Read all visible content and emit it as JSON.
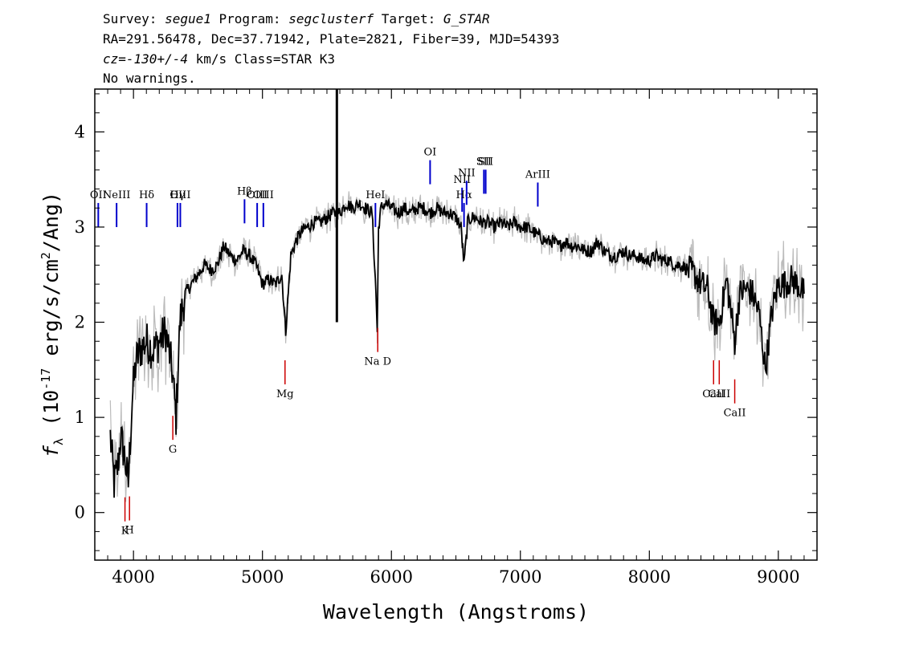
{
  "header": {
    "line1": {
      "survey_label": "Survey: ",
      "survey": "segue1",
      "program_label": " Program: ",
      "program": "segclusterf",
      "target_label": " Target: ",
      "target": "G_STAR"
    },
    "line2": "RA=291.56478, Dec=37.71942, Plate=2821, Fiber=39, MJD=54393",
    "line3": {
      "cz_label": "cz=",
      "cz": "-130+/-4",
      "units_class": " km/s Class=STAR K3"
    },
    "line4": "No warnings."
  },
  "chart_data": {
    "type": "line",
    "xlabel": "Wavelength (Angstroms)",
    "ylabel_parts": {
      "prefix": "f",
      "subscript": "λ",
      "pre": " (10",
      "sup1": "-17",
      "mid": " erg/s/cm",
      "sup2": "2",
      "post": "/Ang)"
    },
    "xlim": [
      3700,
      9300
    ],
    "ylim": [
      -0.5,
      4.45
    ],
    "xticks": [
      4000,
      5000,
      6000,
      7000,
      8000,
      9000
    ],
    "yticks": [
      0,
      1,
      2,
      3,
      4
    ],
    "grid": false,
    "colors": {
      "spectrum": "#000000",
      "noise_band": "#bbbbbb",
      "emission_lines": "#0000cc",
      "absorption_lines": "#cc0000"
    },
    "series": [
      {
        "style": "smoothed flux (black)",
        "x": [
          3740,
          3800,
          3820,
          3850,
          3880,
          3900,
          3930,
          3960,
          3990,
          4020,
          4050,
          4100,
          4150,
          4200,
          4250,
          4300,
          4330,
          4360,
          4400,
          4450,
          4500,
          4550,
          4600,
          4650,
          4700,
          4750,
          4800,
          4850,
          4900,
          4950,
          5000,
          5050,
          5100,
          5150,
          5180,
          5220,
          5260,
          5300,
          5350,
          5400,
          5450,
          5500,
          5550,
          5600,
          5650,
          5700,
          5750,
          5800,
          5850,
          5880,
          5890,
          5900,
          5920,
          5950,
          6000,
          6050,
          6100,
          6150,
          6200,
          6250,
          6300,
          6350,
          6400,
          6450,
          6500,
          6540,
          6563,
          6590,
          6620,
          6650,
          6700,
          6750,
          6800,
          6850,
          6900,
          6950,
          7000,
          7050,
          7100,
          7150,
          7200,
          7250,
          7300,
          7350,
          7400,
          7450,
          7500,
          7550,
          7600,
          7650,
          7700,
          7750,
          7800,
          7850,
          7900,
          7950,
          8000,
          8050,
          8100,
          8150,
          8200,
          8250,
          8300,
          8350,
          8400,
          8450,
          8498,
          8542,
          8600,
          8662,
          8700,
          8750,
          8800,
          8850,
          8900,
          8950,
          9000,
          9050,
          9100,
          9150,
          9200
        ],
        "y": [
          null,
          null,
          0.8,
          0.3,
          0.5,
          0.8,
          0.6,
          0.3,
          1.2,
          1.6,
          1.7,
          1.8,
          1.7,
          1.8,
          1.9,
          1.5,
          1.0,
          2.0,
          2.3,
          2.4,
          2.5,
          2.6,
          2.55,
          2.6,
          2.8,
          2.7,
          2.65,
          2.75,
          2.7,
          2.6,
          2.4,
          2.45,
          2.4,
          2.5,
          1.9,
          2.7,
          2.85,
          2.95,
          3.0,
          3.05,
          3.05,
          3.1,
          3.15,
          3.15,
          3.25,
          3.2,
          3.25,
          3.2,
          3.15,
          2.3,
          1.9,
          3.0,
          3.2,
          3.25,
          3.2,
          3.15,
          3.2,
          3.15,
          3.2,
          3.2,
          3.15,
          3.2,
          3.15,
          3.15,
          3.1,
          3.0,
          2.6,
          3.05,
          3.1,
          3.1,
          3.05,
          3.05,
          3.0,
          3.05,
          3.0,
          3.05,
          3.0,
          3.0,
          2.95,
          2.9,
          2.85,
          2.85,
          2.8,
          2.85,
          2.8,
          2.8,
          2.75,
          2.75,
          2.85,
          2.75,
          2.7,
          2.7,
          2.75,
          2.7,
          2.7,
          2.65,
          2.65,
          2.7,
          2.65,
          2.65,
          2.6,
          2.6,
          2.55,
          2.5,
          2.4,
          2.35,
          2.0,
          2.0,
          2.45,
          1.8,
          2.3,
          2.35,
          2.3,
          2.1,
          1.5,
          2.1,
          2.4,
          2.4,
          2.45,
          2.4,
          2.3
        ]
      }
    ],
    "emission_lines": [
      {
        "label": "OII",
        "wavelength": 3727
      },
      {
        "label": "NeIII",
        "wavelength": 3869
      },
      {
        "label": "Hδ",
        "wavelength": 4102
      },
      {
        "label": "Hγ",
        "wavelength": 4341
      },
      {
        "label": "OIII",
        "wavelength": 4363
      },
      {
        "label": "Hβ",
        "wavelength": 4861
      },
      {
        "label": "OIII",
        "wavelength": 4959
      },
      {
        "label": "OIII",
        "wavelength": 5007
      },
      {
        "label": "HeI",
        "wavelength": 5876
      },
      {
        "label": "OI",
        "wavelength": 6300
      },
      {
        "label": "NII",
        "wavelength": 6548
      },
      {
        "label": "Hα",
        "wavelength": 6563
      },
      {
        "label": "NII",
        "wavelength": 6583
      },
      {
        "label": "SII",
        "wavelength": 6717
      },
      {
        "label": "SII",
        "wavelength": 6731
      },
      {
        "label": "ArIII",
        "wavelength": 7135
      }
    ],
    "absorption_lines": [
      {
        "label": "K",
        "wavelength": 3934
      },
      {
        "label": "H",
        "wavelength": 3969
      },
      {
        "label": "G",
        "wavelength": 4305
      },
      {
        "label": "Mg",
        "wavelength": 5175
      },
      {
        "label": "Na D",
        "wavelength": 5894
      },
      {
        "label": "CaII",
        "wavelength": 8498
      },
      {
        "label": "CaII",
        "wavelength": 8542
      },
      {
        "label": "CaII",
        "wavelength": 8662
      }
    ]
  }
}
